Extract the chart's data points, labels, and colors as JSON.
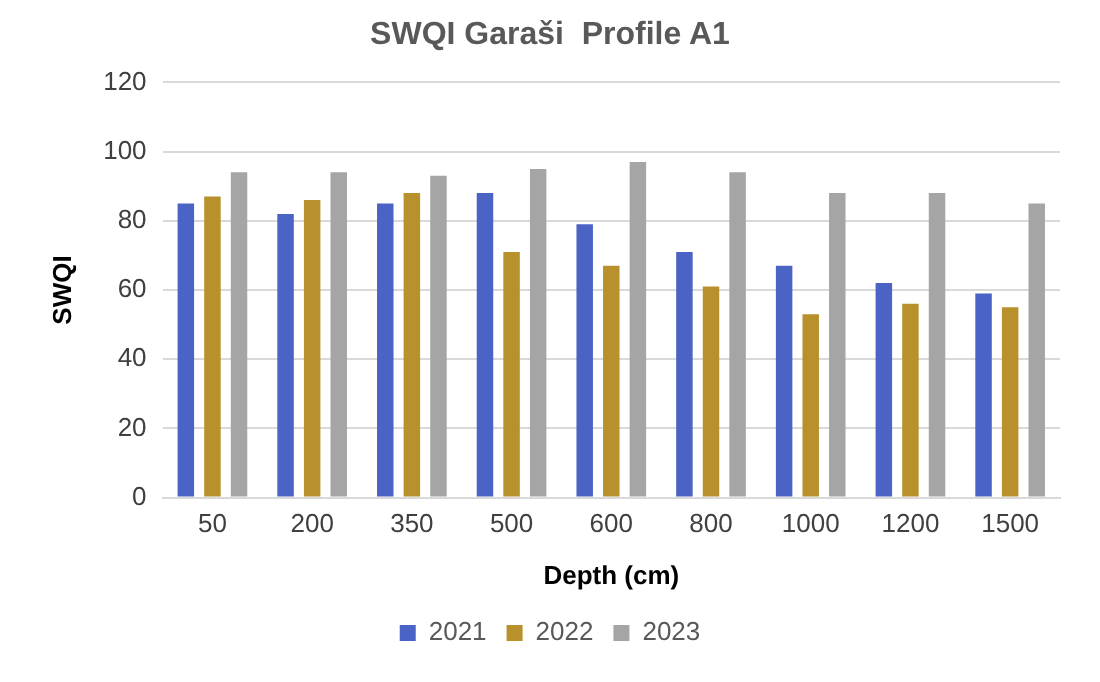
{
  "chart_data": {
    "type": "bar",
    "title": "SWQI Garaši  Profile A1",
    "xlabel": "Depth (cm)",
    "ylabel": "SWQI",
    "categories": [
      "50",
      "200",
      "350",
      "500",
      "600",
      "800",
      "1000",
      "1200",
      "1500"
    ],
    "series": [
      {
        "name": "2021",
        "color": "#4a63c4",
        "values": [
          85,
          82,
          85,
          88,
          79,
          71,
          67,
          62,
          59
        ]
      },
      {
        "name": "2022",
        "color": "#b8902c",
        "values": [
          87,
          86,
          88,
          71,
          67,
          61,
          53,
          56,
          55
        ]
      },
      {
        "name": "2023",
        "color": "#a5a5a5",
        "values": [
          94,
          94,
          93,
          95,
          97,
          94,
          88,
          88,
          85
        ]
      }
    ],
    "ylim": [
      0,
      120
    ],
    "yticks": [
      0,
      20,
      40,
      60,
      80,
      100,
      120
    ],
    "grid": "y",
    "legend": "bottom"
  }
}
